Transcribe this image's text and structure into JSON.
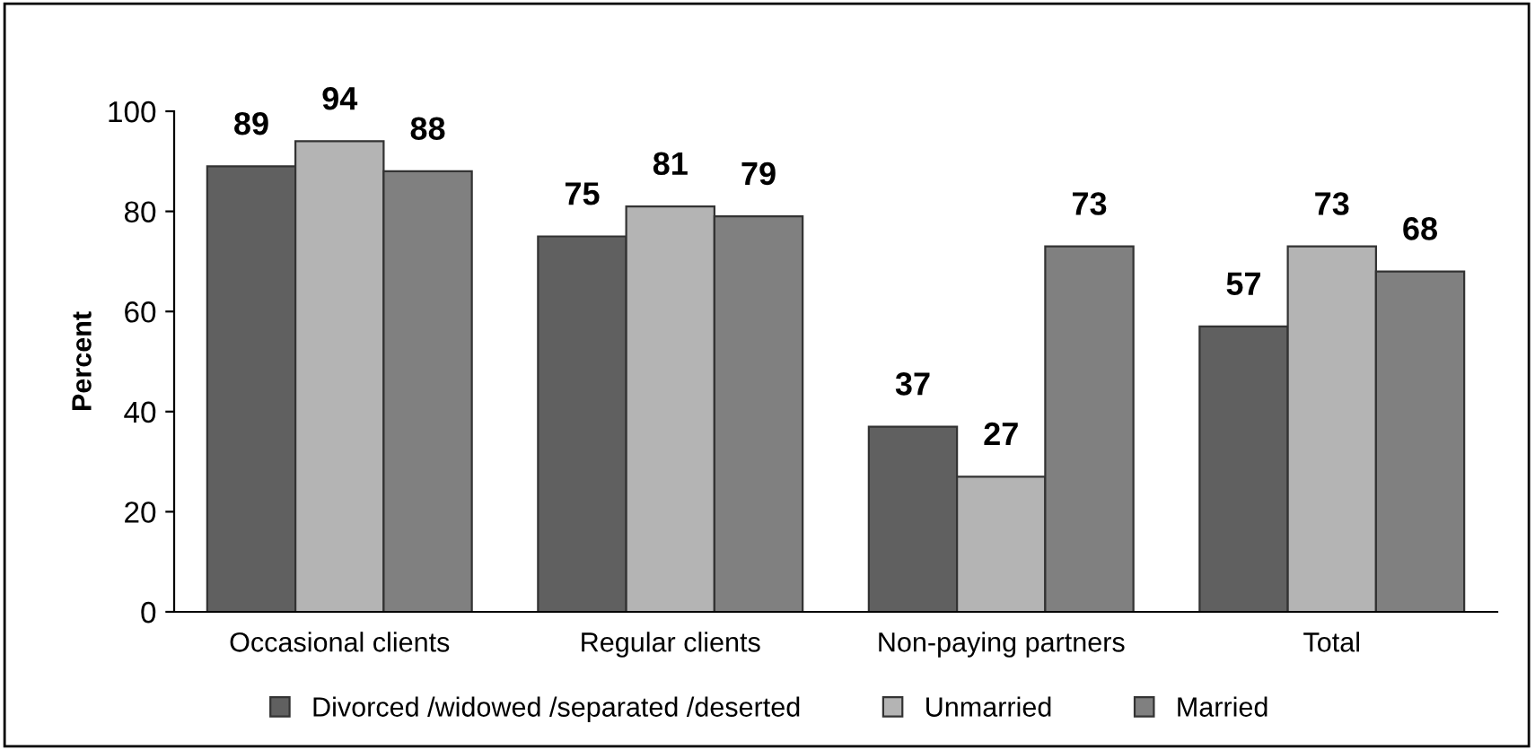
{
  "chart_data": {
    "type": "bar",
    "ylabel": "Percent",
    "categories": [
      "Occasional clients",
      "Regular clients",
      "Non-paying partners",
      "Total"
    ],
    "series": [
      {
        "name": "Divorced /widowed /separated /deserted",
        "color": "#606060",
        "values": [
          89,
          75,
          37,
          57
        ]
      },
      {
        "name": "Unmarried",
        "color": "#b4b4b4",
        "values": [
          94,
          81,
          27,
          73
        ]
      },
      {
        "name": "Married",
        "color": "#808080",
        "values": [
          88,
          79,
          73,
          68
        ]
      }
    ],
    "ylim": [
      0,
      100
    ],
    "yticks": [
      0,
      20,
      40,
      60,
      80,
      100
    ],
    "data_labels": true,
    "legend": "bottom",
    "grid": false
  }
}
